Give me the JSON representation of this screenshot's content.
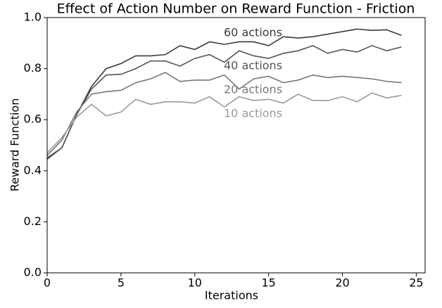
{
  "chart_data": {
    "type": "line",
    "title": "Effect of Action Number on Reward Function - Friction",
    "xlabel": "Iterations",
    "ylabel": "Reward Function",
    "x": [
      0,
      1,
      2,
      3,
      4,
      5,
      6,
      7,
      8,
      9,
      10,
      11,
      12,
      13,
      14,
      15,
      16,
      17,
      18,
      19,
      20,
      21,
      22,
      23,
      24
    ],
    "series": [
      {
        "name": "60 actions",
        "color": "#3a3a3a",
        "values": [
          0.45,
          0.49,
          0.62,
          0.73,
          0.8,
          0.82,
          0.85,
          0.85,
          0.855,
          0.89,
          0.875,
          0.905,
          0.895,
          0.905,
          0.905,
          0.89,
          0.925,
          0.92,
          0.925,
          0.935,
          0.945,
          0.955,
          0.95,
          0.952,
          0.93
        ]
      },
      {
        "name": "40 actions",
        "color": "#555555",
        "values": [
          0.445,
          0.49,
          0.62,
          0.72,
          0.775,
          0.778,
          0.8,
          0.83,
          0.83,
          0.81,
          0.84,
          0.855,
          0.825,
          0.87,
          0.85,
          0.84,
          0.86,
          0.87,
          0.89,
          0.86,
          0.875,
          0.865,
          0.89,
          0.87,
          0.885
        ]
      },
      {
        "name": "20 actions",
        "color": "#777777",
        "values": [
          0.46,
          0.52,
          0.63,
          0.7,
          0.71,
          0.715,
          0.745,
          0.76,
          0.785,
          0.75,
          0.755,
          0.755,
          0.775,
          0.72,
          0.76,
          0.77,
          0.745,
          0.755,
          0.775,
          0.765,
          0.77,
          0.765,
          0.76,
          0.75,
          0.745
        ]
      },
      {
        "name": "10 actions",
        "color": "#999999",
        "values": [
          0.47,
          0.53,
          0.61,
          0.66,
          0.615,
          0.63,
          0.68,
          0.66,
          0.67,
          0.67,
          0.665,
          0.69,
          0.65,
          0.69,
          0.675,
          0.68,
          0.665,
          0.7,
          0.675,
          0.675,
          0.69,
          0.67,
          0.705,
          0.685,
          0.695
        ]
      }
    ],
    "xlim": [
      0,
      25.6
    ],
    "xticks": [
      0,
      5,
      10,
      15,
      20,
      25
    ],
    "ylim": [
      0,
      1
    ],
    "yticks": [
      {
        "value": 0,
        "label": "0.0"
      },
      {
        "value": 0.2,
        "label": "0.2"
      },
      {
        "value": 0.4,
        "label": "0.4"
      },
      {
        "value": 0.6,
        "label": "0.6"
      },
      {
        "value": 0.8,
        "label": "0.8"
      },
      {
        "value": 1,
        "label": "1.0"
      }
    ]
  }
}
